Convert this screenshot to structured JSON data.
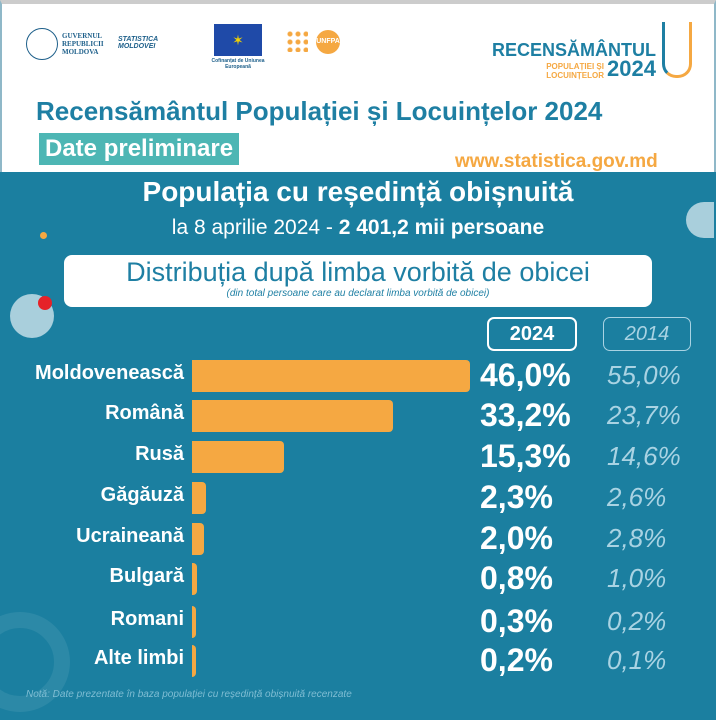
{
  "header": {
    "logos": {
      "gov": "GUVERNUL REPUBLICII MOLDOVA",
      "statistica": "STATISTICA MOLDOVEI",
      "eu": "Cofinanțat de Uniunea Europeană",
      "unfpa": "UNFPA",
      "census_line1": "RECENSĂMÂNTUL",
      "census_line2": "POPULAȚIEI ȘI LOCUINȚELOR",
      "census_year": "2024"
    },
    "title": "Recensământul Populației și Locuințelor 2024",
    "badge": "Date preliminare",
    "website": "www.statistica.gov.md"
  },
  "panel": {
    "title": "Populația cu reședință obișnuită",
    "subtitle_prefix": "la 8 aprilie 2024 - ",
    "subtitle_value": "2 401,2 mii persoane",
    "box_title": "Distribuția după limba vorbită de obicei",
    "box_subtitle": "(din total persoane care au declarat limba vorbită de obicei)",
    "note": "Notă: Date prezentate în baza populației cu reședință obișnuită recenzate"
  },
  "colors": {
    "background": "#1b7fa0",
    "bar": "#f5a842",
    "accent": "#4db6b4"
  },
  "chart_data": {
    "type": "bar",
    "orientation": "horizontal",
    "categories": [
      "Moldovenească",
      "Română",
      "Rusă",
      "Găgăuză",
      "Ucraineană",
      "Bulgară",
      "Romani",
      "Alte limbi"
    ],
    "series": [
      {
        "name": "2024",
        "values": [
          46.0,
          33.2,
          15.3,
          2.3,
          2.0,
          0.8,
          0.3,
          0.2
        ],
        "labels": [
          "46,0%",
          "33,2%",
          "15,3%",
          "2,3%",
          "2,0%",
          "0,8%",
          "0,3%",
          "0,2%"
        ]
      },
      {
        "name": "2014",
        "values": [
          55.0,
          23.7,
          14.6,
          2.6,
          2.8,
          1.0,
          0.2,
          0.1
        ],
        "labels": [
          "55,0%",
          "23,7%",
          "14,6%",
          "2,6%",
          "2,8%",
          "1,0%",
          "0,2%",
          "0,1%"
        ]
      }
    ],
    "unit": "%"
  }
}
